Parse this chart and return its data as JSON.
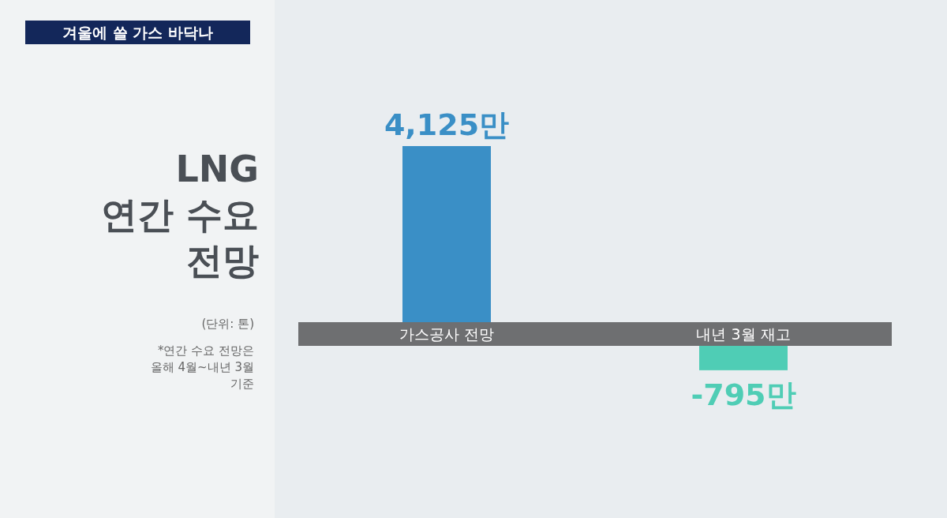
{
  "chart_data": {
    "type": "bar",
    "title": "겨울에 쓸 가스 바닥나",
    "subtitle": "LNG 연간 수요 전망",
    "annotations": [
      "(단위: 톤)",
      "*연간 수요 전망은 올해 4월~내년 3월 기준"
    ],
    "categories": [
      "가스공사 전망",
      "내년 3월 재고"
    ],
    "values": [
      4125,
      -795
    ],
    "colors": [
      "#3a8fc6",
      "#4fcdb5"
    ],
    "value_labels": [
      "4,125만",
      "-795만"
    ]
  }
}
